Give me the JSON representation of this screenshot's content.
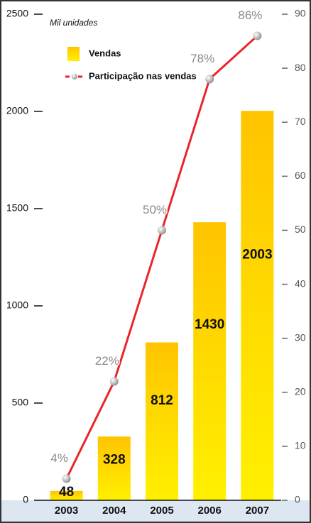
{
  "chart_data": {
    "type": "bar",
    "ylabel": "Mil unidades",
    "categories": [
      "2003",
      "2004",
      "2005",
      "2006",
      "2007"
    ],
    "series": [
      {
        "name": "Vendas",
        "color": "#ffd400",
        "values": [
          48,
          328,
          812,
          1430,
          2003
        ]
      },
      {
        "name": "Participação nas vendas",
        "color": "#e8262a",
        "axis": "y2",
        "type": "line",
        "values": [
          4,
          22,
          50,
          78,
          86
        ],
        "value_labels": [
          "4%",
          "22%",
          "50%",
          "78%",
          "86%"
        ]
      }
    ],
    "ylim": [
      0,
      2500
    ],
    "yticks": [
      0,
      500,
      1000,
      1500,
      2000,
      2500
    ],
    "y2lim": [
      0,
      90
    ],
    "y2ticks": [
      0,
      10,
      20,
      30,
      40,
      50,
      60,
      70,
      80,
      90
    ],
    "legend": "upper left"
  }
}
